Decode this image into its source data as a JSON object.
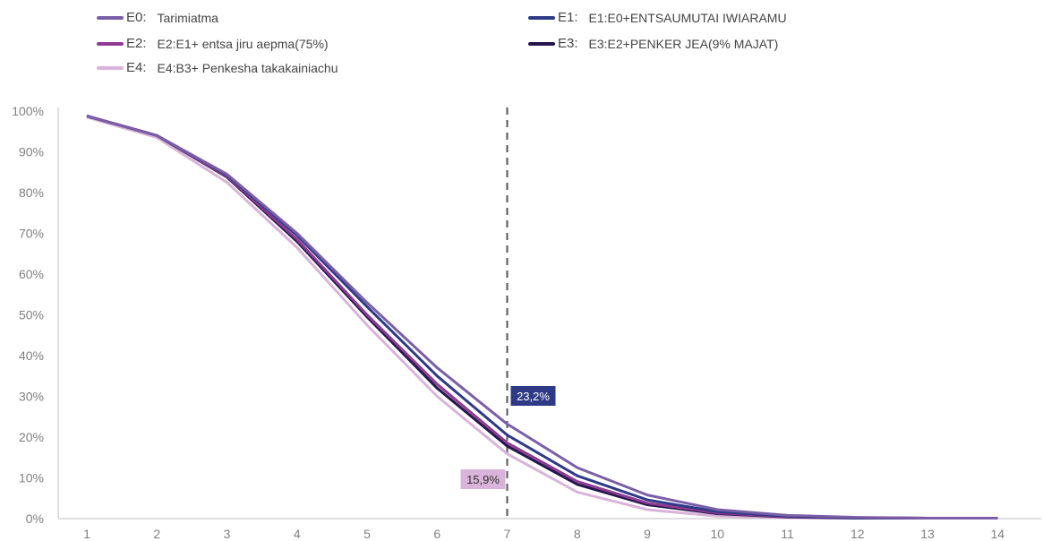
{
  "legend": [
    {
      "code": "E0:",
      "label": "Tarimiatma",
      "color": "#7b5ea8"
    },
    {
      "code": "E1:",
      "label": "E1:E0+ENTSAUMUTAI IWIARAMU",
      "color": "#2e3a86"
    },
    {
      "code": "E2:",
      "label": "E2:E1+ entsa jiru aepma(75%)",
      "color": "#8e3a92"
    },
    {
      "code": "E3:",
      "label": "E3:E2+PENKER JEA(9% MAJAT)",
      "color": "#24154d"
    },
    {
      "code": "E4:",
      "label": "E4:B3+ Penkesha takakainiachu",
      "color": "#d9b3d9"
    }
  ],
  "chart_data": {
    "type": "line",
    "x": [
      1,
      2,
      3,
      4,
      5,
      6,
      7,
      8,
      9,
      10,
      11,
      12,
      13,
      14
    ],
    "ylim": [
      0,
      100
    ],
    "yticks": [
      "0%",
      "10%",
      "20%",
      "30%",
      "40%",
      "50%",
      "60%",
      "70%",
      "80%",
      "90%",
      "100%"
    ],
    "xticks": [
      "1",
      "2",
      "3",
      "4",
      "5",
      "6",
      "7",
      "8",
      "9",
      "10",
      "11",
      "12",
      "13",
      "14"
    ],
    "grid": false,
    "legend_position": "top",
    "series": [
      {
        "name": "E0: Tarimiatma",
        "color": "#7b5ea8",
        "values": [
          98.8,
          94,
          84.5,
          70,
          53,
          37,
          23.2,
          12.5,
          5.8,
          2.2,
          0.8,
          0.3,
          0.1,
          0.1
        ]
      },
      {
        "name": "E1: E1:E0+ENTSAUMUTAI IWIARAMU",
        "color": "#2e3a86",
        "values": [
          98.8,
          94,
          84.3,
          69.5,
          52,
          35,
          20.5,
          10.5,
          4.6,
          1.7,
          0.6,
          0.2,
          0.1,
          0.1
        ]
      },
      {
        "name": "E2: E2:E1+ entsa jiru aepma(75%)",
        "color": "#8e3a92",
        "values": [
          98.8,
          94,
          84,
          68.5,
          50,
          33,
          18.6,
          9.1,
          3.8,
          1.4,
          0.5,
          0.2,
          0.1,
          0.1
        ]
      },
      {
        "name": "E3: E3:E2+PENKER JEA(9% MAJAT)",
        "color": "#24154d",
        "values": [
          98.8,
          94,
          83.8,
          68,
          49.5,
          32,
          17.8,
          8.4,
          3.4,
          1.2,
          0.4,
          0.1,
          0.1,
          0.1
        ]
      },
      {
        "name": "E4: E4:B3+ Penkesha takakainiachu",
        "color": "#d9b3d9",
        "values": [
          98.5,
          93.5,
          82.5,
          66.5,
          47.5,
          30,
          15.9,
          6.5,
          2.2,
          0.6,
          0.2,
          0.1,
          0.1,
          0.1
        ]
      }
    ],
    "reference_line": {
      "x": 7,
      "style": "dashed",
      "color": "#555555"
    },
    "annotations": [
      {
        "text": "23,2%",
        "x": 7,
        "y": 23.2,
        "bg": "#2e3a86",
        "fg": "#ffffff"
      },
      {
        "text": "15,9%",
        "x": 7,
        "y": 15.9,
        "bg": "#d9b3d9",
        "fg": "#333333"
      }
    ]
  }
}
